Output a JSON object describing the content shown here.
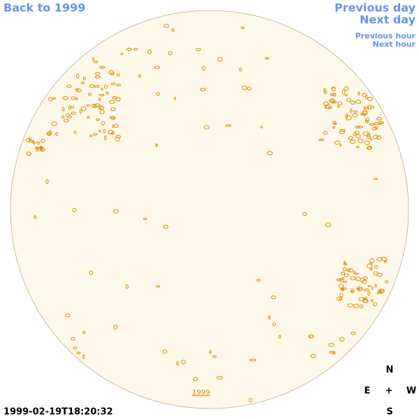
{
  "nav": {
    "back": "Back to 1999",
    "previous_day": "Previous day",
    "next_day": "Next day",
    "previous_hour": "Previous hour",
    "next_hour": "Next hour"
  },
  "disk": {
    "year_link": "1999"
  },
  "timestamp": "1999-02-19T18:20:32",
  "compass": {
    "north": "N",
    "east": "E",
    "center": "+",
    "west": "W",
    "south": "S"
  }
}
